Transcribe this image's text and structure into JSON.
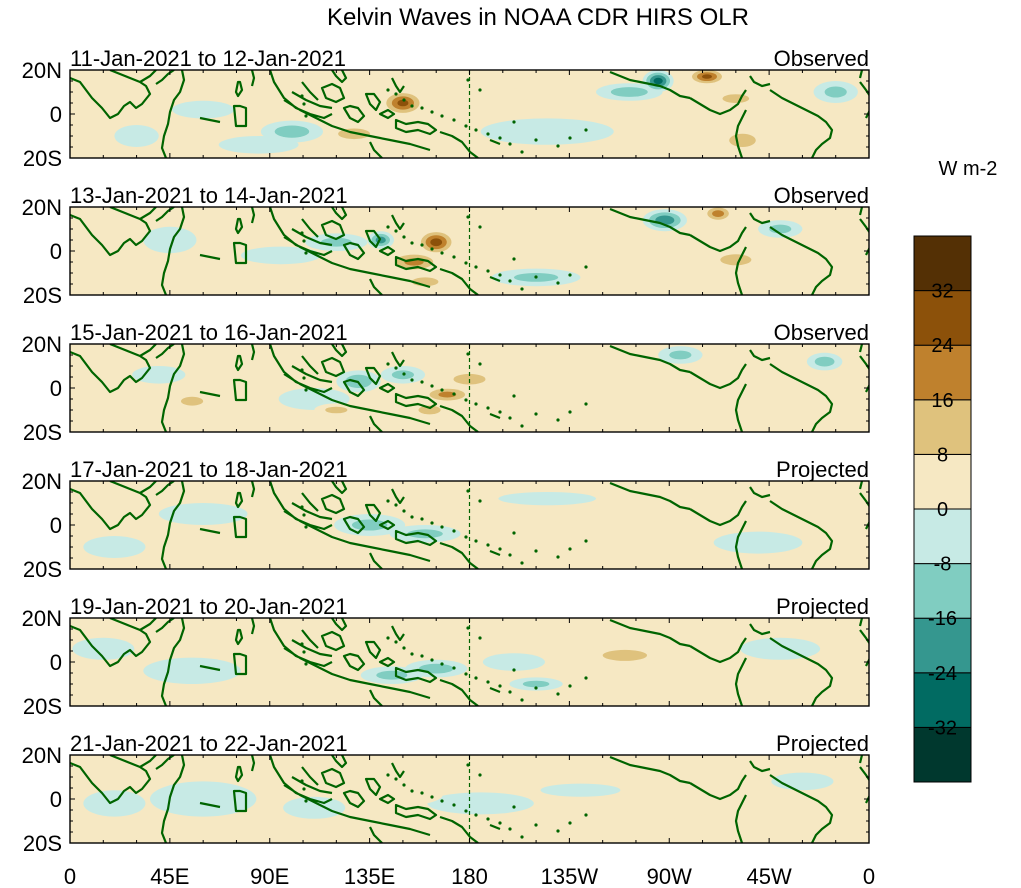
{
  "chart_data": {
    "type": "heatmap",
    "title": "Kelvin Waves in NOAA CDR HIRS OLR",
    "units_label": "W m-2",
    "x_tick_labels": [
      "0",
      "45E",
      "90E",
      "135E",
      "180",
      "135W",
      "90W",
      "45W",
      "0"
    ],
    "x_tick_lons": [
      0,
      45,
      90,
      135,
      180,
      225,
      270,
      315,
      360
    ],
    "xlim": [
      0,
      360
    ],
    "y_tick_labels": [
      "20N",
      "0",
      "20S"
    ],
    "y_tick_lats": [
      20,
      0,
      -20
    ],
    "ylim": [
      -20,
      20
    ],
    "dateline_lon": 180,
    "colorbar": {
      "levels": [
        -32,
        -24,
        -16,
        -8,
        0,
        8,
        16,
        24,
        32
      ],
      "level_labels": [
        "-32",
        "-24",
        "-16",
        "-8",
        "0",
        "8",
        "16",
        "24",
        "32"
      ],
      "colors": [
        "#00382e",
        "#016b62",
        "#35978f",
        "#80cdc1",
        "#c7eae5",
        "#f6e8c3",
        "#dfc27d",
        "#bf812d",
        "#8c510a",
        "#543005"
      ]
    },
    "panels": [
      {
        "period": "11-Jan-2021 to 12-Jan-2021",
        "status": "Observed",
        "anomalies": [
          {
            "lon": 150,
            "lat": 5,
            "value": 26,
            "rx": 10,
            "ry": 6
          },
          {
            "lon": 128,
            "lat": -9,
            "value": 14,
            "rx": 12,
            "ry": 4
          },
          {
            "lon": 100,
            "lat": -8,
            "value": -12,
            "rx": 14,
            "ry": 5
          },
          {
            "lon": 85,
            "lat": -14,
            "value": -8,
            "rx": 18,
            "ry": 4
          },
          {
            "lon": 168,
            "lat": -3,
            "value": 8,
            "rx": 14,
            "ry": 5
          },
          {
            "lon": 190,
            "lat": 9,
            "value": 8,
            "rx": 26,
            "ry": 3
          },
          {
            "lon": 215,
            "lat": -8,
            "value": -8,
            "rx": 30,
            "ry": 6
          },
          {
            "lon": 265,
            "lat": 15,
            "value": -28,
            "rx": 7,
            "ry": 5
          },
          {
            "lon": 252,
            "lat": 10,
            "value": -12,
            "rx": 15,
            "ry": 4
          },
          {
            "lon": 287,
            "lat": 17,
            "value": 26,
            "rx": 9,
            "ry": 4
          },
          {
            "lon": 300,
            "lat": 7,
            "value": 10,
            "rx": 12,
            "ry": 4
          },
          {
            "lon": 303,
            "lat": -12,
            "value": 10,
            "rx": 12,
            "ry": 6
          },
          {
            "lon": 345,
            "lat": 10,
            "value": -10,
            "rx": 10,
            "ry": 5
          },
          {
            "lon": 30,
            "lat": -10,
            "value": -8,
            "rx": 10,
            "ry": 5
          },
          {
            "lon": 60,
            "lat": 2,
            "value": -8,
            "rx": 14,
            "ry": 4
          }
        ]
      },
      {
        "period": "13-Jan-2021 to 14-Jan-2021",
        "status": "Observed",
        "anomalies": [
          {
            "lon": 165,
            "lat": 4,
            "value": 28,
            "rx": 9,
            "ry": 6
          },
          {
            "lon": 155,
            "lat": -5,
            "value": 18,
            "rx": 13,
            "ry": 5
          },
          {
            "lon": 140,
            "lat": 5,
            "value": -20,
            "rx": 6,
            "ry": 4
          },
          {
            "lon": 120,
            "lat": 4,
            "value": -10,
            "rx": 14,
            "ry": 4
          },
          {
            "lon": 95,
            "lat": -2,
            "value": -8,
            "rx": 18,
            "ry": 4
          },
          {
            "lon": 160,
            "lat": -14,
            "value": 10,
            "rx": 12,
            "ry": 4
          },
          {
            "lon": 210,
            "lat": -12,
            "value": -10,
            "rx": 20,
            "ry": 4
          },
          {
            "lon": 268,
            "lat": 14,
            "value": -22,
            "rx": 10,
            "ry": 5
          },
          {
            "lon": 292,
            "lat": 17,
            "value": 20,
            "rx": 7,
            "ry": 4
          },
          {
            "lon": 300,
            "lat": -4,
            "value": 10,
            "rx": 14,
            "ry": 5
          },
          {
            "lon": 320,
            "lat": 10,
            "value": -10,
            "rx": 10,
            "ry": 4
          },
          {
            "lon": 45,
            "lat": 5,
            "value": -8,
            "rx": 12,
            "ry": 6
          },
          {
            "lon": 30,
            "lat": -12,
            "value": 8,
            "rx": 12,
            "ry": 4
          }
        ]
      },
      {
        "period": "15-Jan-2021 to 16-Jan-2021",
        "status": "Observed",
        "anomalies": [
          {
            "lon": 170,
            "lat": -3,
            "value": 18,
            "rx": 12,
            "ry": 4
          },
          {
            "lon": 180,
            "lat": 4,
            "value": 14,
            "rx": 12,
            "ry": 4
          },
          {
            "lon": 162,
            "lat": -10,
            "value": 10,
            "rx": 10,
            "ry": 4
          },
          {
            "lon": 130,
            "lat": 3,
            "value": -14,
            "rx": 10,
            "ry": 5
          },
          {
            "lon": 150,
            "lat": 6,
            "value": -10,
            "rx": 10,
            "ry": 4
          },
          {
            "lon": 110,
            "lat": -5,
            "value": -8,
            "rx": 16,
            "ry": 5
          },
          {
            "lon": 120,
            "lat": -10,
            "value": 10,
            "rx": 10,
            "ry": 3
          },
          {
            "lon": 240,
            "lat": 10,
            "value": 8,
            "rx": 26,
            "ry": 4
          },
          {
            "lon": 275,
            "lat": 15,
            "value": -10,
            "rx": 10,
            "ry": 4
          },
          {
            "lon": 340,
            "lat": 12,
            "value": -12,
            "rx": 8,
            "ry": 4
          },
          {
            "lon": 55,
            "lat": -6,
            "value": 10,
            "rx": 10,
            "ry": 4
          },
          {
            "lon": 40,
            "lat": 6,
            "value": -8,
            "rx": 12,
            "ry": 4
          }
        ]
      },
      {
        "period": "17-Jan-2021 to 18-Jan-2021",
        "status": "Projected",
        "anomalies": [
          {
            "lon": 135,
            "lat": 0,
            "value": -10,
            "rx": 16,
            "ry": 5
          },
          {
            "lon": 160,
            "lat": -4,
            "value": -10,
            "rx": 16,
            "ry": 4
          },
          {
            "lon": 200,
            "lat": -3,
            "value": 8,
            "rx": 28,
            "ry": 6
          },
          {
            "lon": 250,
            "lat": 5,
            "value": 8,
            "rx": 30,
            "ry": 4
          },
          {
            "lon": 215,
            "lat": 12,
            "value": -8,
            "rx": 22,
            "ry": 3
          },
          {
            "lon": 100,
            "lat": -5,
            "value": 8,
            "rx": 12,
            "ry": 4
          },
          {
            "lon": 60,
            "lat": 5,
            "value": -8,
            "rx": 20,
            "ry": 5
          },
          {
            "lon": 20,
            "lat": -10,
            "value": -8,
            "rx": 14,
            "ry": 5
          },
          {
            "lon": 310,
            "lat": -8,
            "value": -8,
            "rx": 20,
            "ry": 5
          },
          {
            "lon": 330,
            "lat": 14,
            "value": 8,
            "rx": 10,
            "ry": 4
          }
        ]
      },
      {
        "period": "19-Jan-2021 to 20-Jan-2021",
        "status": "Projected",
        "anomalies": [
          {
            "lon": 165,
            "lat": -3,
            "value": -12,
            "rx": 14,
            "ry": 4
          },
          {
            "lon": 145,
            "lat": -6,
            "value": -10,
            "rx": 14,
            "ry": 4
          },
          {
            "lon": 200,
            "lat": 0,
            "value": -8,
            "rx": 14,
            "ry": 4
          },
          {
            "lon": 210,
            "lat": -10,
            "value": -10,
            "rx": 12,
            "ry": 3
          },
          {
            "lon": 250,
            "lat": 3,
            "value": 10,
            "rx": 20,
            "ry": 5
          },
          {
            "lon": 230,
            "lat": -14,
            "value": 8,
            "rx": 30,
            "ry": 3
          },
          {
            "lon": 110,
            "lat": 3,
            "value": 8,
            "rx": 14,
            "ry": 4
          },
          {
            "lon": 55,
            "lat": -4,
            "value": -8,
            "rx": 22,
            "ry": 6
          },
          {
            "lon": 15,
            "lat": 6,
            "value": -8,
            "rx": 14,
            "ry": 5
          },
          {
            "lon": 320,
            "lat": 6,
            "value": -8,
            "rx": 18,
            "ry": 5
          },
          {
            "lon": 300,
            "lat": -14,
            "value": 8,
            "rx": 12,
            "ry": 4
          }
        ]
      },
      {
        "period": "21-Jan-2021 to 22-Jan-2021",
        "status": "Projected",
        "anomalies": [
          {
            "lon": 185,
            "lat": -2,
            "value": -8,
            "rx": 24,
            "ry": 5
          },
          {
            "lon": 230,
            "lat": 4,
            "value": -8,
            "rx": 18,
            "ry": 3
          },
          {
            "lon": 150,
            "lat": 2,
            "value": 8,
            "rx": 18,
            "ry": 5
          },
          {
            "lon": 270,
            "lat": -4,
            "value": 8,
            "rx": 20,
            "ry": 5
          },
          {
            "lon": 110,
            "lat": -4,
            "value": -8,
            "rx": 14,
            "ry": 5
          },
          {
            "lon": 60,
            "lat": 0,
            "value": -8,
            "rx": 24,
            "ry": 8
          },
          {
            "lon": 20,
            "lat": -2,
            "value": -8,
            "rx": 14,
            "ry": 6
          },
          {
            "lon": 330,
            "lat": 8,
            "value": -8,
            "rx": 14,
            "ry": 4
          },
          {
            "lon": 300,
            "lat": -12,
            "value": 8,
            "rx": 10,
            "ry": 4
          }
        ]
      }
    ]
  }
}
